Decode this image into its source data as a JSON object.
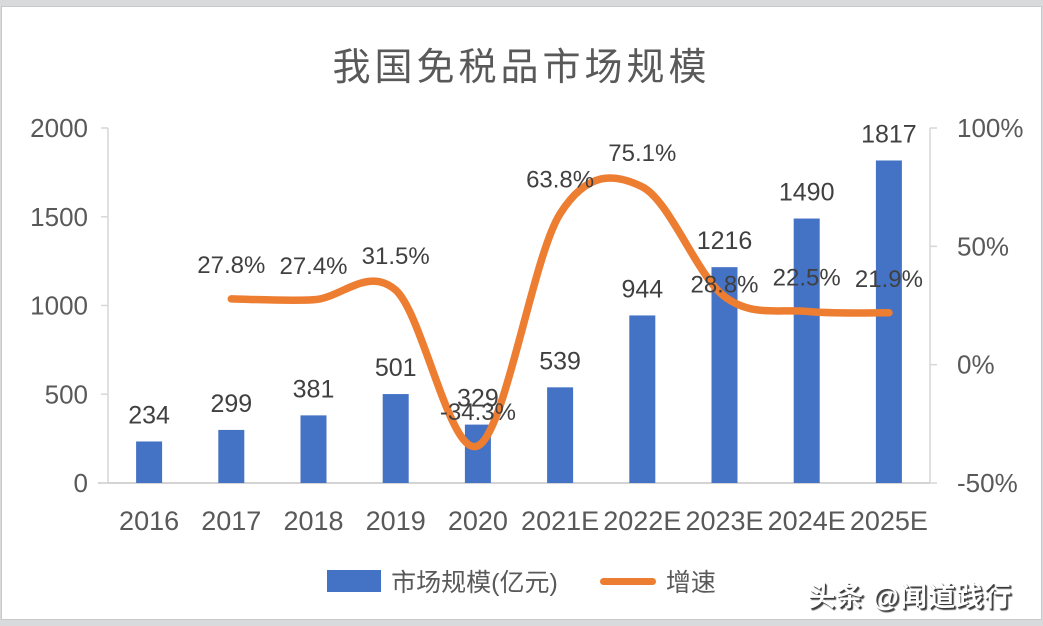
{
  "page": {
    "watermark": "头条 @闻道践行"
  },
  "chart_data": {
    "type": "bar",
    "subtype": "bar-line-combo",
    "title": "我国免税品市场规模",
    "categories": [
      "2016",
      "2017",
      "2018",
      "2019",
      "2020",
      "2021E",
      "2022E",
      "2023E",
      "2024E",
      "2025E"
    ],
    "series": [
      {
        "name": "市场规模(亿元)",
        "type": "bar",
        "axis": "left",
        "color": "#4472C4",
        "values": [
          234,
          299,
          381,
          501,
          329,
          539,
          944,
          1216,
          1490,
          1817
        ],
        "data_labels": [
          "234",
          "299",
          "381",
          "501",
          "329",
          "539",
          "944",
          "1216",
          "1490",
          "1817"
        ]
      },
      {
        "name": "增速",
        "type": "line",
        "axis": "right",
        "smooth": true,
        "color": "#ED7D31",
        "values": [
          null,
          27.8,
          27.4,
          31.5,
          -34.3,
          63.8,
          75.1,
          28.8,
          22.5,
          21.9
        ],
        "data_labels": [
          "",
          "27.8%",
          "27.4%",
          "31.5%",
          "-34.3%",
          "63.8%",
          "75.1%",
          "28.8%",
          "22.5%",
          "21.9%"
        ]
      }
    ],
    "left_axis": {
      "min": 0,
      "max": 2000,
      "ticks": [
        2000,
        1500,
        1000,
        500,
        0
      ],
      "tick_labels": [
        "2000",
        "1500",
        "1000",
        "500",
        "0"
      ]
    },
    "right_axis": {
      "min": -50,
      "max": 100,
      "ticks": [
        100,
        50,
        0,
        -50
      ],
      "tick_labels": [
        "100%",
        "50%",
        "0%",
        "-50%"
      ]
    },
    "legend": {
      "position": "bottom",
      "entries": [
        {
          "label": "市场规模(亿元)",
          "marker": "rect",
          "color": "#4472C4"
        },
        {
          "label": "增速",
          "marker": "line",
          "color": "#ED7D31"
        }
      ]
    },
    "grid": "off",
    "colors": {
      "axis_line": "#d9d9d9",
      "baseline": "#c6c6c6",
      "tick_label": "#595959",
      "data_label": "#404040",
      "title": "#595959"
    }
  }
}
